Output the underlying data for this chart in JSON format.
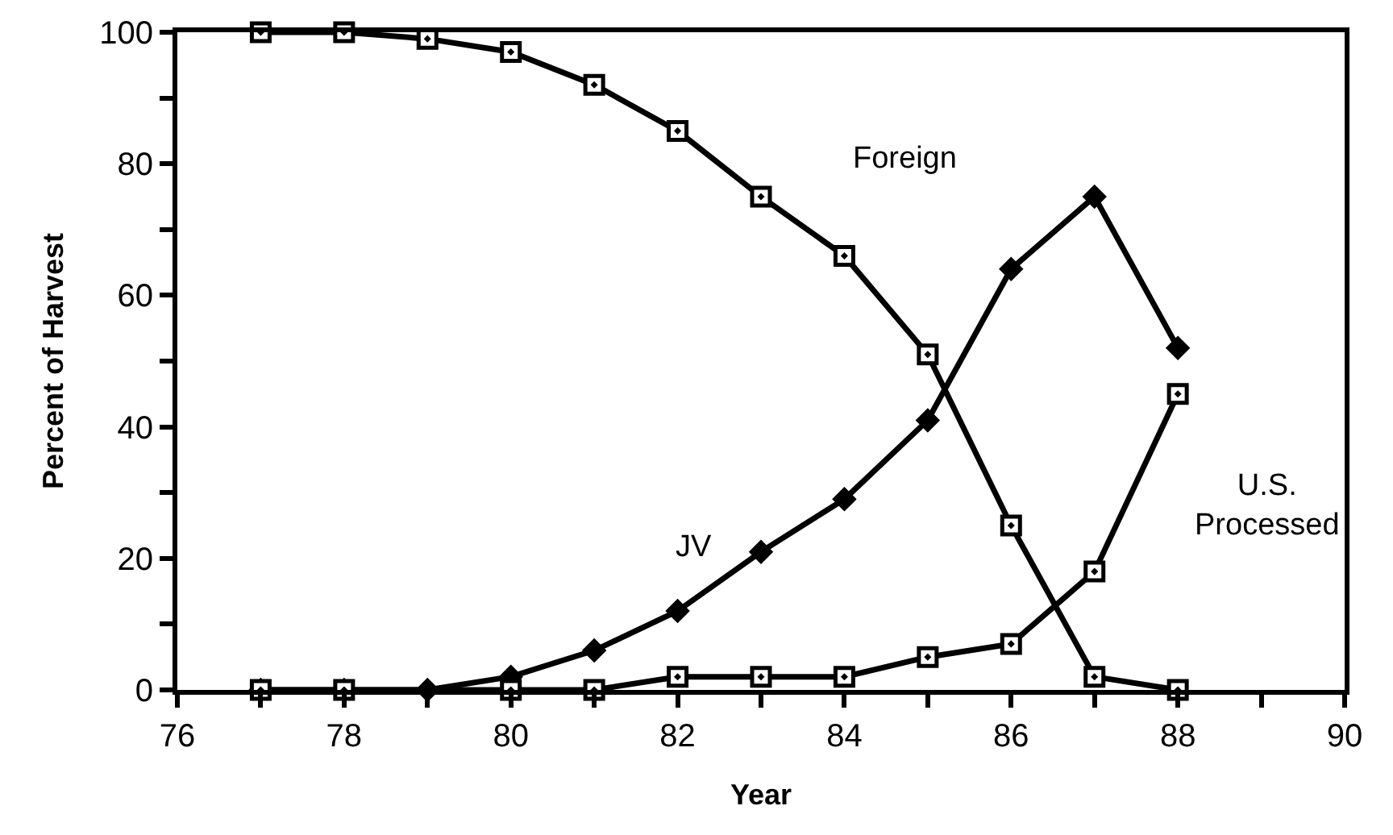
{
  "chart_data": {
    "type": "line",
    "xlabel": "Year",
    "ylabel": "Percent of Harvest",
    "x": [
      77,
      78,
      79,
      80,
      81,
      82,
      83,
      84,
      85,
      86,
      87,
      88
    ],
    "series": [
      {
        "name": "Foreign",
        "color": "#000000",
        "marker": "square",
        "values": [
          100,
          100,
          99,
          97,
          92,
          85,
          75,
          66,
          51,
          25,
          2,
          0
        ]
      },
      {
        "name": "JV",
        "color": "#000000",
        "marker": "diamond",
        "values": [
          0,
          0,
          0,
          2,
          6,
          12,
          21,
          29,
          41,
          64,
          75,
          52
        ]
      },
      {
        "name": "U.S. Processed",
        "color": "#000000",
        "marker": "square",
        "values": [
          0,
          0,
          null,
          0,
          0,
          2,
          2,
          2,
          5,
          7,
          18,
          45
        ]
      }
    ],
    "xlim": [
      76,
      90
    ],
    "xticks": [
      76,
      {
        "value": 77,
        "label": null
      },
      78,
      {
        "value": 79,
        "label": null
      },
      80,
      {
        "value": 81,
        "label": null
      },
      82,
      {
        "value": 83,
        "label": null
      },
      84,
      {
        "value": 85,
        "label": null
      },
      86,
      {
        "value": 87,
        "label": null
      },
      88,
      {
        "value": 89,
        "label": null
      },
      90
    ],
    "ylim": [
      0,
      100
    ],
    "yticks": [
      0,
      {
        "value": 10,
        "label": null
      },
      20,
      {
        "value": 30,
        "label": null
      },
      40,
      {
        "value": 50,
        "label": null
      },
      60,
      {
        "value": 70,
        "label": null
      },
      80,
      {
        "value": 90,
        "label": null
      },
      100
    ],
    "grid": false,
    "legend": false,
    "line_style": "solid"
  }
}
